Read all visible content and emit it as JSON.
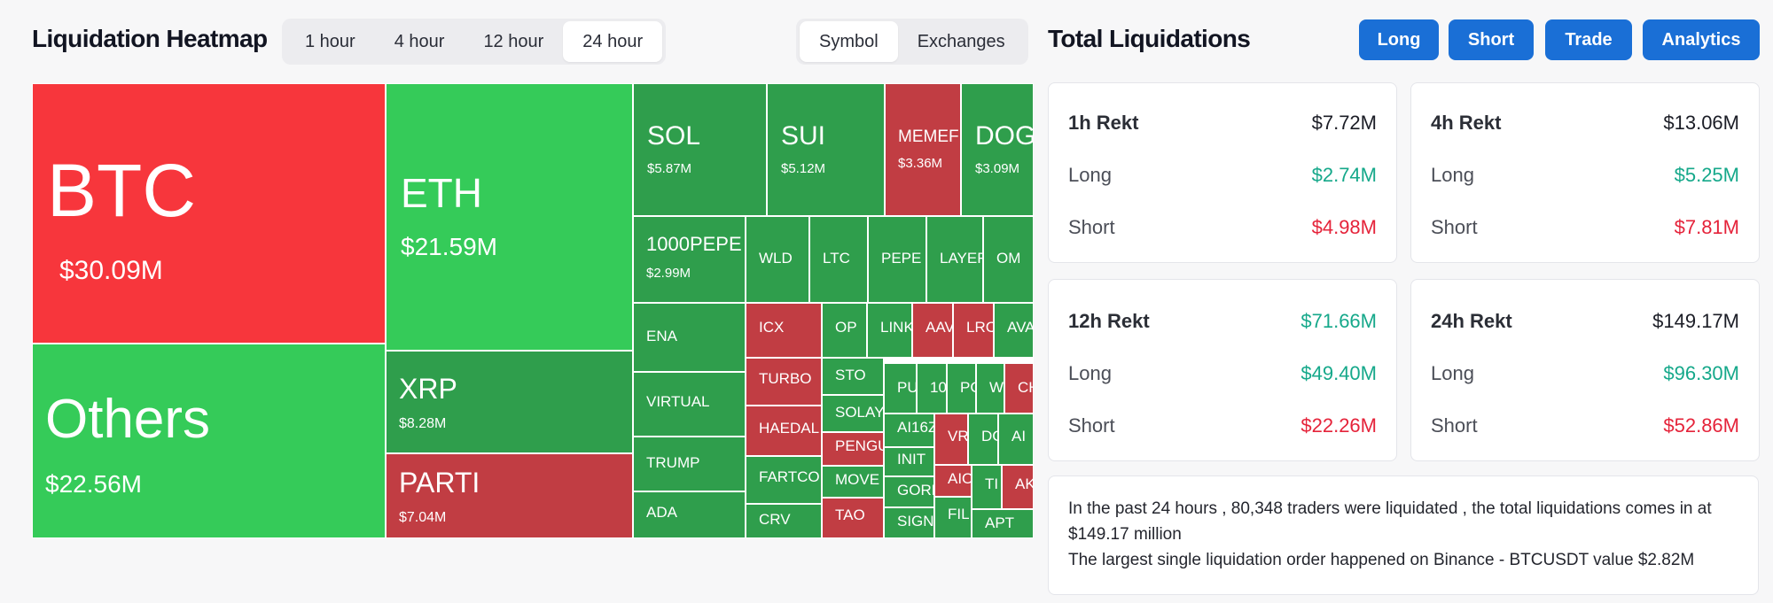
{
  "colors": {
    "bright_red": "#f7363c",
    "bright_green": "#35cb59",
    "dark_green": "#2f9e4c",
    "dark_red": "#c13d43",
    "accent_blue": "#1a6fd6",
    "positive": "#15a88a",
    "negative": "#e5233a"
  },
  "heatmap": {
    "title": "Liquidation Heatmap",
    "timeframes": [
      "1 hour",
      "4 hour",
      "12 hour",
      "24 hour"
    ],
    "active_timeframe": "24 hour",
    "group_by": [
      "Symbol",
      "Exchanges"
    ],
    "active_group": "Symbol",
    "tiles": [
      {
        "symbol": "BTC",
        "value": "$30.09M",
        "color": "bright_red"
      },
      {
        "symbol": "Others",
        "value": "$22.56M",
        "color": "bright_green"
      },
      {
        "symbol": "ETH",
        "value": "$21.59M",
        "color": "bright_green"
      },
      {
        "symbol": "XRP",
        "value": "$8.28M",
        "color": "dark_green"
      },
      {
        "symbol": "PARTI",
        "value": "$7.04M",
        "color": "dark_red"
      },
      {
        "symbol": "SOL",
        "value": "$5.87M",
        "color": "dark_green"
      },
      {
        "symbol": "SUI",
        "value": "$5.12M",
        "color": "dark_green"
      },
      {
        "symbol": "MEMEF",
        "value": "$3.36M",
        "color": "dark_red"
      },
      {
        "symbol": "DOGE",
        "value": "$3.09M",
        "color": "dark_green"
      },
      {
        "symbol": "1000PEPE",
        "value": "$2.99M",
        "color": "dark_green"
      },
      {
        "symbol": "WLD",
        "color": "dark_green"
      },
      {
        "symbol": "LTC",
        "color": "dark_green"
      },
      {
        "symbol": "PEPE",
        "color": "dark_green"
      },
      {
        "symbol": "LAYER",
        "color": "dark_green"
      },
      {
        "symbol": "OM",
        "color": "dark_green"
      },
      {
        "symbol": "ENA",
        "color": "dark_green"
      },
      {
        "symbol": "ICX",
        "color": "dark_red"
      },
      {
        "symbol": "OP",
        "color": "dark_green"
      },
      {
        "symbol": "LINK",
        "color": "dark_green"
      },
      {
        "symbol": "AAVE",
        "color": "dark_red"
      },
      {
        "symbol": "LRC",
        "color": "dark_red"
      },
      {
        "symbol": "AVA",
        "color": "dark_green"
      },
      {
        "symbol": "VIRTUAL",
        "color": "dark_green"
      },
      {
        "symbol": "TURBO",
        "color": "dark_red"
      },
      {
        "symbol": "STO",
        "color": "dark_green"
      },
      {
        "symbol": "PU",
        "color": "dark_green"
      },
      {
        "symbol": "10",
        "color": "dark_green"
      },
      {
        "symbol": "PC",
        "color": "dark_green"
      },
      {
        "symbol": "W",
        "color": "dark_green"
      },
      {
        "symbol": "CH",
        "color": "dark_red"
      },
      {
        "symbol": "HAEDAL",
        "color": "dark_red"
      },
      {
        "symbol": "SOLAY",
        "color": "dark_green"
      },
      {
        "symbol": "AI16Z",
        "color": "dark_green"
      },
      {
        "symbol": "TRUMP",
        "color": "dark_green"
      },
      {
        "symbol": "PENGU",
        "color": "dark_red"
      },
      {
        "symbol": "VR",
        "color": "dark_red"
      },
      {
        "symbol": "DC",
        "color": "dark_green"
      },
      {
        "symbol": "AI",
        "color": "dark_green"
      },
      {
        "symbol": "FARTCOIN",
        "color": "dark_green"
      },
      {
        "symbol": "INIT",
        "color": "dark_green"
      },
      {
        "symbol": "MOVE",
        "color": "dark_green"
      },
      {
        "symbol": "AIO",
        "color": "dark_red"
      },
      {
        "symbol": "TI",
        "color": "dark_green"
      },
      {
        "symbol": "AK",
        "color": "dark_red"
      },
      {
        "symbol": "GORK",
        "color": "dark_green"
      },
      {
        "symbol": "ADA",
        "color": "dark_green"
      },
      {
        "symbol": "CRV",
        "color": "dark_green"
      },
      {
        "symbol": "TAO",
        "color": "dark_red"
      },
      {
        "symbol": "SIGN",
        "color": "dark_green"
      },
      {
        "symbol": "FIL",
        "color": "dark_green"
      },
      {
        "symbol": "APT",
        "color": "dark_green"
      }
    ]
  },
  "totals": {
    "title": "Total Liquidations",
    "buttons": [
      "Long",
      "Short",
      "Trade",
      "Analytics"
    ],
    "cards": [
      {
        "title": "1h Rekt",
        "total": "$7.72M",
        "total_color": "",
        "long_label": "Long",
        "long": "$2.74M",
        "short_label": "Short",
        "short": "$4.98M"
      },
      {
        "title": "4h Rekt",
        "total": "$13.06M",
        "total_color": "",
        "long_label": "Long",
        "long": "$5.25M",
        "short_label": "Short",
        "short": "$7.81M"
      },
      {
        "title": "12h Rekt",
        "total": "$71.66M",
        "total_color": "green",
        "long_label": "Long",
        "long": "$49.40M",
        "short_label": "Short",
        "short": "$22.26M"
      },
      {
        "title": "24h Rekt",
        "total": "$149.17M",
        "total_color": "",
        "long_label": "Long",
        "long": "$96.30M",
        "short_label": "Short",
        "short": "$52.86M"
      }
    ],
    "summary_line1": "In the past 24 hours , 80,348 traders were liquidated , the total liquidations comes in at $149.17 million",
    "summary_line2": "The largest single liquidation order happened on Binance - BTCUSDT value $2.82M"
  }
}
